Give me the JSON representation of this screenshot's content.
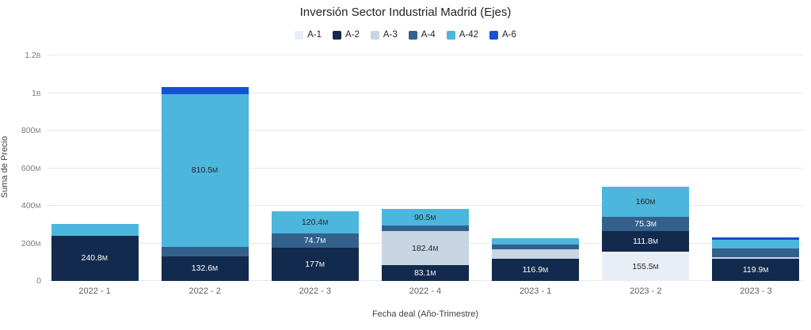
{
  "header": {
    "title": "Inversión Sector Industrial Madrid (Ejes)"
  },
  "legend": {
    "position": "top",
    "items": [
      {
        "label": "A-1",
        "color": "#E9EDF5"
      },
      {
        "label": "A-2",
        "color": "#122A4D"
      },
      {
        "label": "A-3",
        "color": "#C8D5E3"
      },
      {
        "label": "A-4",
        "color": "#33618C"
      },
      {
        "label": "A-42",
        "color": "#4DB6DC"
      },
      {
        "label": "A-6",
        "color": "#1551D0"
      }
    ]
  },
  "chart_data": {
    "type": "bar",
    "stacked": true,
    "title": "Inversión Sector Industrial Madrid (Ejes)",
    "xlabel": "Fecha deal (Año-Trimestre)",
    "ylabel": "Suma de Precio",
    "unit": "millions",
    "ylim": [
      0,
      1200
    ],
    "grid": true,
    "yticks": [
      {
        "value": 0,
        "label": "0"
      },
      {
        "value": 200,
        "label": "200M"
      },
      {
        "value": 400,
        "label": "400M"
      },
      {
        "value": 600,
        "label": "600M"
      },
      {
        "value": 800,
        "label": "800M"
      },
      {
        "value": 1000,
        "label": "1B"
      },
      {
        "value": 1200,
        "label": "1.2B"
      }
    ],
    "categories": [
      "2022 - 1",
      "2022 - 2",
      "2022 - 3",
      "2022 - 4",
      "2023 - 1",
      "2023 - 2",
      "2023 - 3"
    ],
    "series": [
      {
        "name": "A-1",
        "color": "#E9EDF5",
        "label_color": "#252423",
        "values": [
          0,
          0,
          0,
          0,
          0,
          155.5,
          0
        ],
        "labels": [
          null,
          null,
          null,
          null,
          null,
          "155.5M",
          null
        ]
      },
      {
        "name": "A-2",
        "color": "#122A4D",
        "label_color": "#FFFFFF",
        "values": [
          240.8,
          132.6,
          177,
          83.1,
          116.9,
          111.8,
          119.9
        ],
        "labels": [
          "240.8M",
          "132.6M",
          "177M",
          "83.1M",
          "116.9M",
          "111.8M",
          "119.9M"
        ]
      },
      {
        "name": "A-3",
        "color": "#C8D5E3",
        "label_color": "#252423",
        "values": [
          0,
          0,
          0,
          182.4,
          50,
          0,
          6
        ],
        "labels": [
          null,
          null,
          null,
          "182.4M",
          null,
          null,
          null
        ]
      },
      {
        "name": "A-4",
        "color": "#33618C",
        "label_color": "#FFFFFF",
        "values": [
          0,
          50,
          74.7,
          28,
          25,
          75.3,
          45
        ],
        "labels": [
          null,
          null,
          "74.7M",
          null,
          null,
          "75.3M",
          null
        ]
      },
      {
        "name": "A-42",
        "color": "#4DB6DC",
        "label_color": "#252423",
        "values": [
          62,
          810.5,
          120.4,
          90.5,
          35,
          160,
          50
        ],
        "labels": [
          null,
          "810.5M",
          "120.4M",
          "90.5M",
          null,
          "160M",
          null
        ]
      },
      {
        "name": "A-6",
        "color": "#1551D0",
        "label_color": "#FFFFFF",
        "values": [
          0,
          40,
          0,
          0,
          0,
          0,
          12
        ],
        "labels": [
          null,
          null,
          null,
          null,
          null,
          null,
          null
        ]
      }
    ]
  }
}
